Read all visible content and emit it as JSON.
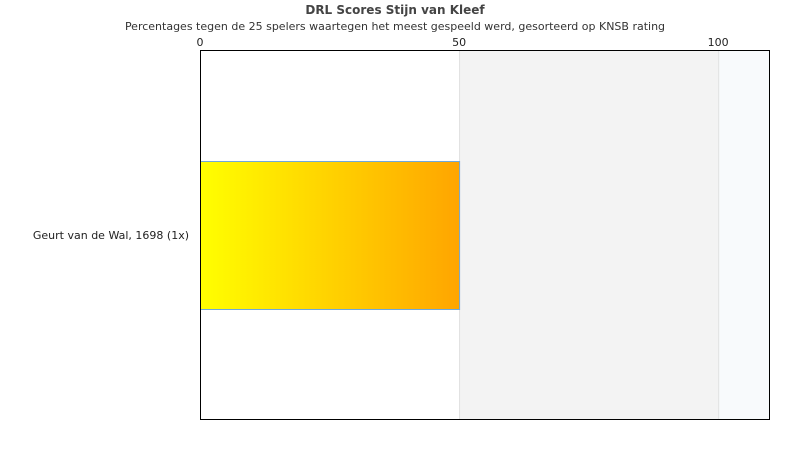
{
  "chart_data": {
    "type": "bar",
    "orientation": "horizontal",
    "title": "DRL Scores Stijn van Kleef",
    "subtitle": "Percentages tegen de 25 spelers waartegen het meest gespeeld werd, gesorteerd op KNSB rating",
    "categories": [
      "Geurt van de Wal, 1698 (1x)"
    ],
    "values": [
      50
    ],
    "xlim": [
      0,
      110
    ],
    "xticks": [
      0,
      50,
      100
    ],
    "xaxis_position": "top",
    "bands": [
      {
        "from": 50,
        "to": 100,
        "color": "#f3f3f3"
      },
      {
        "from": 100,
        "to": 110,
        "color": "#f8fafc"
      }
    ],
    "bar_gradient": [
      "#ffff00",
      "#ffa500"
    ],
    "bar_border_color": "#6fa8dc",
    "legend": "none"
  }
}
